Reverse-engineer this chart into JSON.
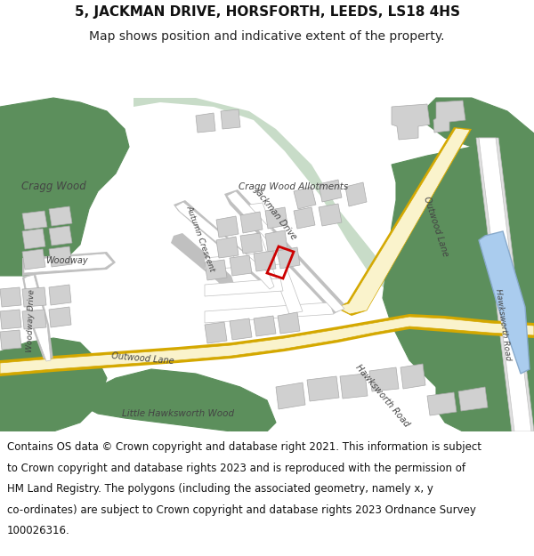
{
  "title_line1": "5, JACKMAN DRIVE, HORSFORTH, LEEDS, LS18 4HS",
  "title_line2": "Map shows position and indicative extent of the property.",
  "footer_lines": [
    "Contains OS data © Crown copyright and database right 2021. This information is subject",
    "to Crown copyright and database rights 2023 and is reproduced with the permission of",
    "HM Land Registry. The polygons (including the associated geometry, namely x, y",
    "co-ordinates) are subject to Crown copyright and database rights 2023 Ordnance Survey",
    "100026316."
  ],
  "bg": "#ffffff",
  "map_bg": "#ffffff",
  "green_dark": "#5c8f5c",
  "green_light": "#c8dcc8",
  "road_fill": "#faf3cc",
  "road_border": "#d4a800",
  "road_white": "#ffffff",
  "road_grey_border": "#c0c0c0",
  "building_fill": "#d0d0d0",
  "building_border": "#aaaaaa",
  "water_fill": "#aaccee",
  "water_border": "#88aacc",
  "property_color": "#cc0000",
  "title_fontsize": 11,
  "subtitle_fontsize": 10,
  "footer_fontsize": 8.5,
  "label_color": "#444444"
}
